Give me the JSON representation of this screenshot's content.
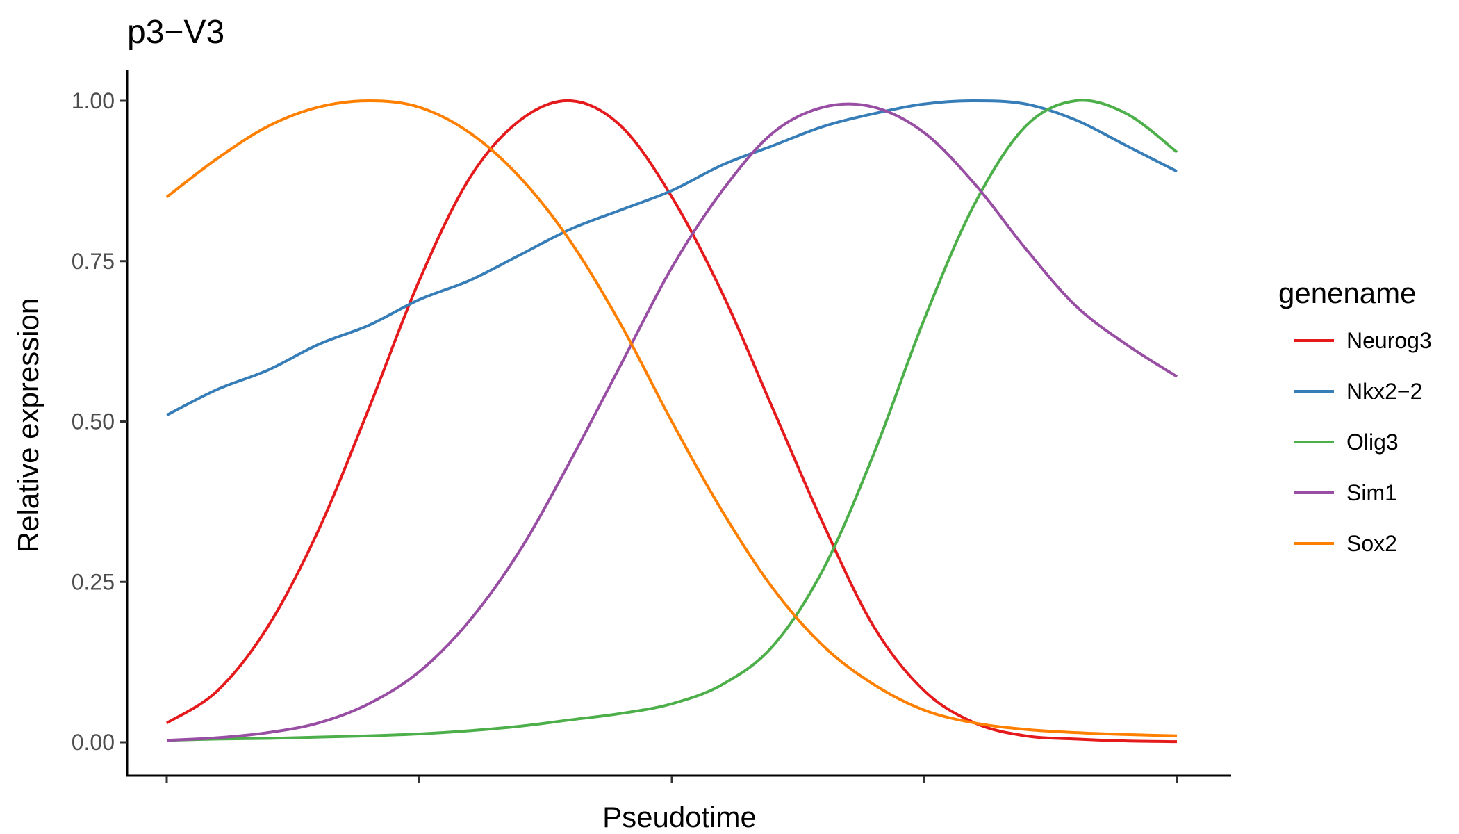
{
  "chart_data": {
    "type": "line",
    "title": "p3−V3",
    "xlabel": "Pseudotime",
    "ylabel": "Relative expression",
    "xlim": [
      0,
      1
    ],
    "ylim": [
      0,
      1
    ],
    "x_ticks": [
      0,
      0.25,
      0.5,
      0.75,
      1.0
    ],
    "x_tick_labels": [
      "",
      "",
      "",
      "",
      ""
    ],
    "y_ticks": [
      0,
      0.25,
      0.5,
      0.75,
      1.0
    ],
    "y_tick_labels": [
      "0.00",
      "0.25",
      "0.50",
      "0.75",
      "1.00"
    ],
    "grid": false,
    "legend": {
      "title": "genename",
      "placement": "right"
    },
    "x": [
      0.0,
      0.05,
      0.1,
      0.15,
      0.2,
      0.25,
      0.3,
      0.35,
      0.4,
      0.45,
      0.5,
      0.55,
      0.6,
      0.65,
      0.7,
      0.75,
      0.8,
      0.85,
      0.9,
      0.95,
      1.0
    ],
    "series": [
      {
        "name": "Neurog3",
        "color": "#e41a1c",
        "values": [
          0.03,
          0.08,
          0.18,
          0.33,
          0.52,
          0.72,
          0.88,
          0.97,
          1.0,
          0.96,
          0.85,
          0.7,
          0.52,
          0.34,
          0.18,
          0.08,
          0.03,
          0.01,
          0.005,
          0.002,
          0.001
        ]
      },
      {
        "name": "Nkx2−2",
        "color": "#377eb8",
        "values": [
          0.51,
          0.55,
          0.58,
          0.62,
          0.65,
          0.69,
          0.72,
          0.76,
          0.8,
          0.83,
          0.86,
          0.9,
          0.93,
          0.96,
          0.98,
          0.995,
          1.0,
          0.995,
          0.97,
          0.93,
          0.89
        ]
      },
      {
        "name": "Olig3",
        "color": "#4daf4a",
        "values": [
          0.003,
          0.005,
          0.006,
          0.008,
          0.01,
          0.013,
          0.018,
          0.025,
          0.035,
          0.045,
          0.06,
          0.09,
          0.15,
          0.27,
          0.45,
          0.66,
          0.84,
          0.96,
          1.0,
          0.98,
          0.92
        ]
      },
      {
        "name": "Sim1",
        "color": "#984ea3",
        "values": [
          0.003,
          0.007,
          0.015,
          0.03,
          0.06,
          0.11,
          0.19,
          0.3,
          0.44,
          0.59,
          0.74,
          0.86,
          0.95,
          0.99,
          0.99,
          0.95,
          0.87,
          0.77,
          0.68,
          0.62,
          0.57
        ]
      },
      {
        "name": "Sox2",
        "color": "#ff7f00",
        "values": [
          0.85,
          0.91,
          0.96,
          0.99,
          1.0,
          0.99,
          0.95,
          0.88,
          0.78,
          0.65,
          0.5,
          0.36,
          0.24,
          0.15,
          0.09,
          0.05,
          0.03,
          0.02,
          0.015,
          0.012,
          0.01
        ]
      }
    ]
  }
}
